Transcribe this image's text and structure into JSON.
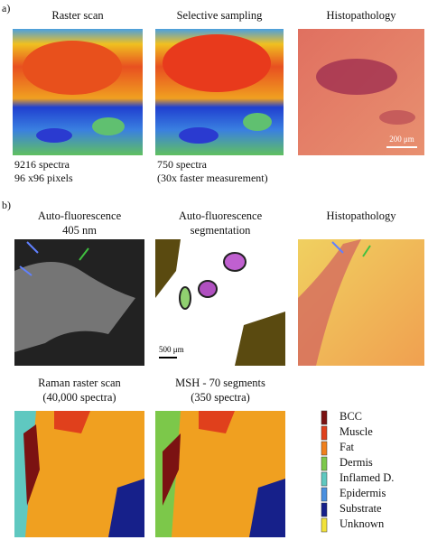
{
  "panels": [
    {
      "label": "a)",
      "images": [
        {
          "title": [
            "Raster scan"
          ],
          "caption": [
            "9216 spectra",
            "96 x96 pixels"
          ]
        },
        {
          "title": [
            "Selective sampling"
          ],
          "caption": [
            "750 spectra",
            "(30x faster measurement)"
          ]
        },
        {
          "title": [
            "Histopathology"
          ],
          "scale_bar": "200 μm"
        }
      ]
    },
    {
      "label": "b)",
      "images": [
        {
          "title": [
            "Auto-fluorescence",
            "405 nm"
          ]
        },
        {
          "title": [
            "Auto-fluorescence",
            "segmentation"
          ],
          "scale_bar": "500 μm"
        },
        {
          "title": [
            "Histopathology"
          ]
        },
        {
          "title": [
            "Raman raster scan",
            "(40,000 spectra)"
          ]
        },
        {
          "title": [
            "MSH - 70 segments",
            "(350 spectra)"
          ]
        }
      ]
    }
  ],
  "legend": [
    {
      "name": "BCC",
      "color": "#7b1212"
    },
    {
      "name": "Muscle",
      "color": "#e0401c"
    },
    {
      "name": "Fat",
      "color": "#f0801c"
    },
    {
      "name": "Dermis",
      "color": "#7cc84a"
    },
    {
      "name": "Inflamed D.",
      "color": "#5fc8c0"
    },
    {
      "name": "Epidermis",
      "color": "#4a90e0"
    },
    {
      "name": "Substrate",
      "color": "#16208a"
    },
    {
      "name": "Unknown",
      "color": "#f2e23a"
    }
  ]
}
